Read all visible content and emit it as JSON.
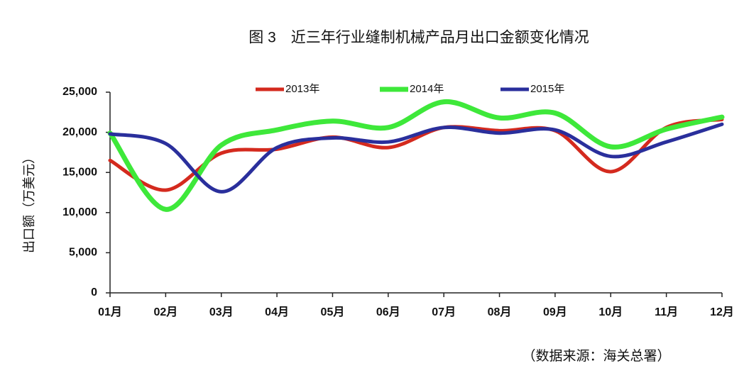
{
  "chart_data": {
    "type": "line",
    "title": "图 3　近三年行业缝制机械产品月出口金额变化情况",
    "ylabel": "出口额（万美元）",
    "annotation": "（数据来源：海关总署）",
    "categories": [
      "01月",
      "02月",
      "03月",
      "04月",
      "05月",
      "06月",
      "07月",
      "08月",
      "09月",
      "10月",
      "11月",
      "12月"
    ],
    "series": [
      {
        "name": "2013年",
        "color": "#d42a1e",
        "values": [
          16500,
          12800,
          17400,
          17900,
          19400,
          18100,
          20600,
          20200,
          20200,
          15100,
          20600,
          21600
        ]
      },
      {
        "name": "2014年",
        "color": "#3ee83a",
        "values": [
          19900,
          10400,
          18400,
          20300,
          21400,
          20600,
          23800,
          21800,
          22400,
          18200,
          20400,
          21900
        ]
      },
      {
        "name": "2015年",
        "color": "#2a2f9c",
        "values": [
          19800,
          18600,
          12600,
          18100,
          19300,
          18800,
          20600,
          19900,
          20300,
          17000,
          18800,
          21000
        ]
      }
    ],
    "ylim": [
      0,
      25000
    ],
    "yticks": [
      0,
      {
        "value": 5000,
        "label": "5,000"
      },
      {
        "value": 10000,
        "label": "10,000"
      },
      {
        "value": 15000,
        "label": "15,000"
      },
      {
        "value": 20000,
        "label": "20,000"
      },
      {
        "value": 25000,
        "label": "25,000"
      }
    ],
    "smooth": true,
    "legend": "top"
  }
}
